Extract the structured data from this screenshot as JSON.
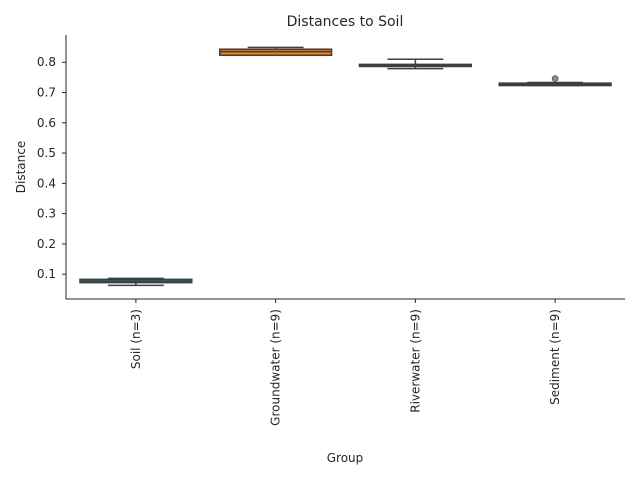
{
  "chart_data": {
    "type": "box",
    "title": "Distances to Soil",
    "xlabel": "Group",
    "ylabel": "Distance",
    "ylim": [
      0.018,
      0.89
    ],
    "yticks": [
      0.1,
      0.2,
      0.3,
      0.4,
      0.5,
      0.6,
      0.7,
      0.8
    ],
    "ytick_labels": [
      "0.1",
      "0.2",
      "0.3",
      "0.4",
      "0.5",
      "0.6",
      "0.7",
      "0.8"
    ],
    "grid": false,
    "categories": [
      "Soil (n=3)",
      "Groundwater (n=9)",
      "Riverwater (n=9)",
      "Sediment (n=9)"
    ],
    "boxes": [
      {
        "label": "Soil (n=3)",
        "color": "#3274a1",
        "whisker_low": 0.063,
        "q1": 0.072,
        "median": 0.077,
        "q3": 0.083,
        "whisker_high": 0.086,
        "outliers": []
      },
      {
        "label": "Groundwater (n=9)",
        "color": "#e1812c",
        "whisker_low": 0.823,
        "q1": 0.823,
        "median": 0.835,
        "q3": 0.843,
        "whisker_high": 0.849,
        "outliers": []
      },
      {
        "label": "Riverwater (n=9)",
        "color": "#3a923a",
        "whisker_low": 0.779,
        "q1": 0.786,
        "median": 0.79,
        "q3": 0.793,
        "whisker_high": 0.81,
        "outliers": []
      },
      {
        "label": "Sediment (n=9)",
        "color": "#c03d3e",
        "whisker_low": 0.723,
        "q1": 0.723,
        "median": 0.727,
        "q3": 0.731,
        "whisker_high": 0.733,
        "outliers": [
          0.746
        ]
      }
    ]
  }
}
